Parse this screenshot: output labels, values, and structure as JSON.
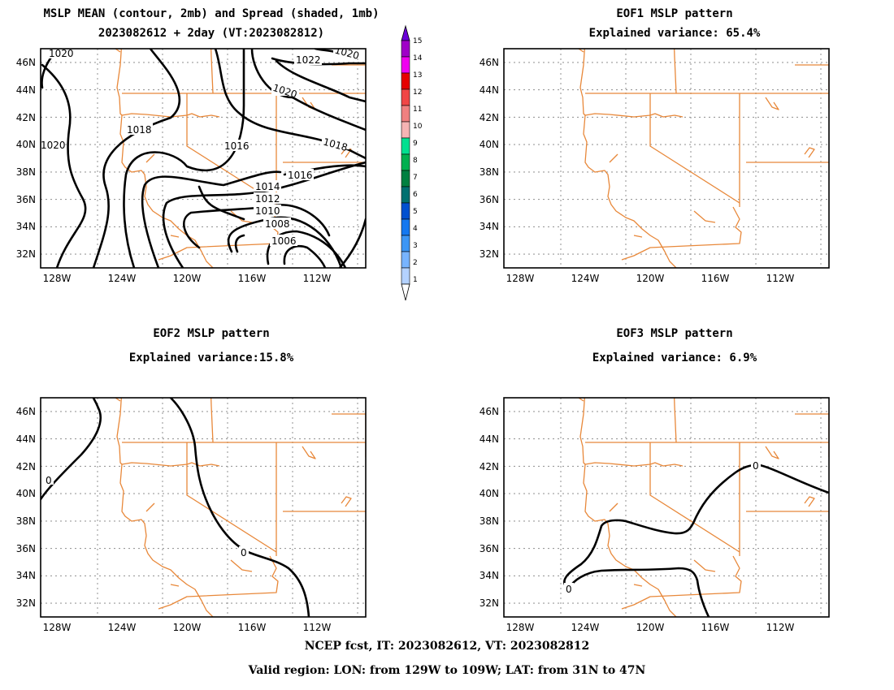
{
  "chart_data": [
    {
      "type": "contour",
      "title": "MSLP MEAN (contour, 2mb) and Spread (shaded, 1mb)",
      "subtitle": "2023082612 + 2day (VT:2023082812)",
      "x_ticks": [
        "128W",
        "124W",
        "120W",
        "116W",
        "112W"
      ],
      "y_ticks": [
        "46N",
        "44N",
        "42N",
        "40N",
        "38N",
        "36N",
        "34N",
        "32N"
      ],
      "contour_levels": [
        "1006",
        "1008",
        "1010",
        "1012",
        "1014",
        "1016",
        "1016",
        "1018",
        "1018",
        "1020",
        "1020",
        "1020",
        "1022"
      ],
      "xlim": [
        "129W",
        "109W"
      ],
      "ylim": [
        "31N",
        "47N"
      ]
    },
    {
      "type": "contour",
      "title": "EOF1 MSLP pattern",
      "subtitle": "Explained variance: 65.4%",
      "x_ticks": [
        "128W",
        "124W",
        "120W",
        "116W",
        "112W"
      ],
      "y_ticks": [
        "46N",
        "44N",
        "42N",
        "40N",
        "38N",
        "36N",
        "34N",
        "32N"
      ],
      "explained_variance_pct": 65.4
    },
    {
      "type": "contour",
      "title": "EOF2 MSLP pattern",
      "subtitle": "Explained variance:15.8%",
      "x_ticks": [
        "128W",
        "124W",
        "120W",
        "116W",
        "112W"
      ],
      "y_ticks": [
        "46N",
        "44N",
        "42N",
        "40N",
        "38N",
        "36N",
        "34N",
        "32N"
      ],
      "contour_levels": [
        "0",
        "0"
      ],
      "explained_variance_pct": 15.8
    },
    {
      "type": "contour",
      "title": "EOF3 MSLP pattern",
      "subtitle": "Explained variance: 6.9%",
      "x_ticks": [
        "128W",
        "124W",
        "120W",
        "116W",
        "112W"
      ],
      "y_ticks": [
        "46N",
        "44N",
        "42N",
        "40N",
        "38N",
        "36N",
        "34N",
        "32N"
      ],
      "contour_levels": [
        "0",
        "0"
      ],
      "explained_variance_pct": 6.9
    }
  ],
  "colorbar": {
    "labels": [
      "15",
      "14",
      "13",
      "12",
      "11",
      "10",
      "9",
      "8",
      "7",
      "6",
      "5",
      "4",
      "3",
      "2",
      "1"
    ],
    "colors": [
      "#a000c8",
      "#f000f0",
      "#e60000",
      "#f04646",
      "#f08080",
      "#f5b4b4",
      "#00e090",
      "#00b050",
      "#008040",
      "#007070",
      "#0050d0",
      "#1478f0",
      "#3c96f5",
      "#78b4ff",
      "#b4d2ff"
    ]
  },
  "colors": {
    "geography": "#e8883a",
    "contour": "#000000",
    "grid": "#9a9a9a"
  },
  "footer": {
    "line1": "NCEP fcst, IT: 2023082612, VT: 2023082812",
    "line2": "Valid region: LON: from 129W to 109W; LAT: from 31N to 47N"
  }
}
